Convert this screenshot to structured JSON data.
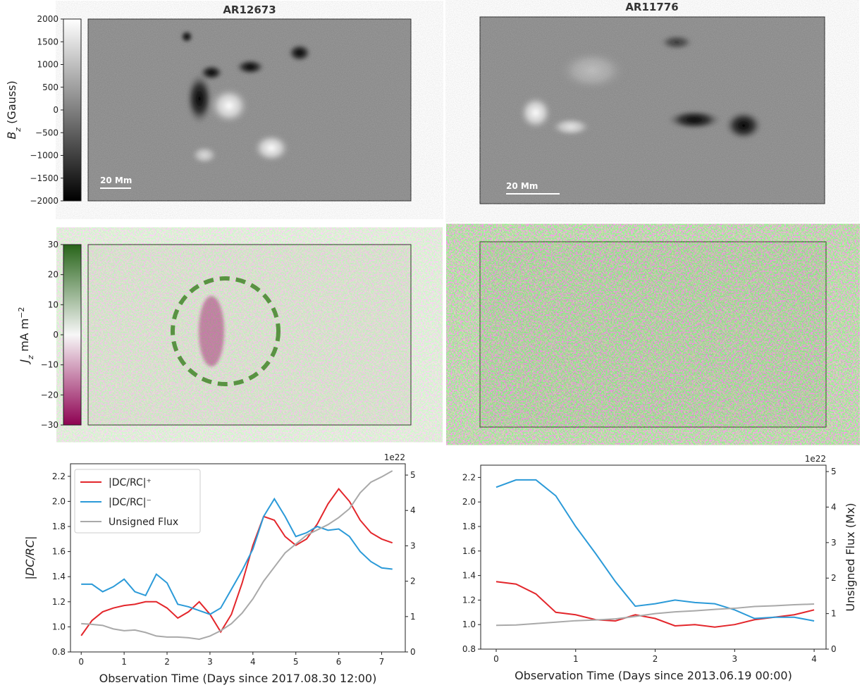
{
  "images": {
    "columns": [
      {
        "title": "AR12673",
        "scale_bar": "20 Mm"
      },
      {
        "title": "AR11776",
        "scale_bar": "20 Mm"
      }
    ],
    "colorbars": [
      {
        "label": {
          "symbol": "B",
          "sub": "z",
          "text": " (Gauss)"
        },
        "lim": [
          -2000,
          2000
        ],
        "colors": [
          "#000000",
          "#ffffff"
        ],
        "ticks": [
          2000,
          1500,
          1000,
          500,
          0,
          {
            "value": -500,
            "label": "−500"
          },
          {
            "value": -1000,
            "label": "−1000"
          },
          {
            "value": -1500,
            "label": "−1500"
          },
          {
            "value": -2000,
            "label": "−2000"
          }
        ]
      },
      {
        "label": {
          "symbol": "J",
          "sub": "z",
          "text": " mA m",
          "sup": "−2"
        },
        "lim": [
          -30,
          30
        ],
        "colors": [
          "#8e0152",
          "#f7f7f7",
          "#276419"
        ],
        "ticks": [
          30,
          20,
          10,
          0,
          {
            "value": -10,
            "label": "−10"
          },
          {
            "value": -20,
            "label": "−20"
          },
          {
            "value": -30,
            "label": "−30"
          }
        ]
      }
    ]
  },
  "chart_data": [
    {
      "type": "line",
      "xlabel": "Observation Time (Days since 2017.08.30 12:00)",
      "ylabel": "|DC/RC|",
      "y2_offset_label": "1e22",
      "legend": "upper left",
      "xlim": [
        -0.25,
        7.55
      ],
      "ylim": [
        0.8,
        2.3
      ],
      "y2lim": [
        0,
        5.32
      ],
      "xticks": [
        0,
        1,
        2,
        3,
        4,
        5,
        6,
        7
      ],
      "yticks": [
        0.8,
        {
          "value": 1,
          "label": "1.0"
        },
        1.2,
        1.4,
        1.6,
        1.8,
        {
          "value": 2,
          "label": "2.0"
        },
        2.2
      ],
      "y2ticks": [
        0,
        1,
        2,
        3,
        4,
        5
      ],
      "x": [
        0,
        0.25,
        0.5,
        0.75,
        1,
        1.25,
        1.5,
        1.75,
        2,
        2.25,
        2.5,
        2.75,
        3,
        3.25,
        3.5,
        3.75,
        4,
        4.25,
        4.5,
        4.75,
        5,
        5.25,
        5.5,
        5.75,
        6,
        6.25,
        6.5,
        6.75,
        7,
        7.25
      ],
      "series": [
        {
          "name": "|DC/RC|⁺",
          "color": "#e3262b",
          "axis": "y",
          "values": [
            0.93,
            1.05,
            1.12,
            1.15,
            1.17,
            1.18,
            1.2,
            1.2,
            1.15,
            1.07,
            1.12,
            1.2,
            1.1,
            0.96,
            1.1,
            1.35,
            1.65,
            1.88,
            1.85,
            1.72,
            1.65,
            1.7,
            1.82,
            1.98,
            2.1,
            2.0,
            1.85,
            1.75,
            1.7,
            1.67
          ]
        },
        {
          "name": "|DC/RC|⁻",
          "color": "#2b9ad8",
          "axis": "y",
          "values": [
            1.34,
            1.34,
            1.28,
            1.32,
            1.38,
            1.28,
            1.25,
            1.42,
            1.35,
            1.18,
            1.16,
            1.13,
            1.1,
            1.15,
            1.3,
            1.45,
            1.62,
            1.88,
            2.02,
            1.88,
            1.72,
            1.75,
            1.8,
            1.77,
            1.78,
            1.72,
            1.6,
            1.52,
            1.47,
            1.46
          ]
        },
        {
          "name": "Unsigned Flux",
          "color": "#a9a9a9",
          "axis": "y2",
          "values": [
            0.8,
            0.78,
            0.75,
            0.65,
            0.6,
            0.62,
            0.55,
            0.45,
            0.42,
            0.42,
            0.4,
            0.36,
            0.45,
            0.6,
            0.8,
            1.1,
            1.5,
            2.0,
            2.4,
            2.8,
            3.05,
            3.3,
            3.45,
            3.6,
            3.8,
            4.05,
            4.5,
            4.8,
            4.95,
            5.12
          ]
        }
      ]
    },
    {
      "type": "line",
      "xlabel": "Observation Time (Days since 2013.06.19 00:00)",
      "y2label": "Unsigned Flux (Mx)",
      "y2_offset_label": "1e22",
      "xlim": [
        -0.195,
        4.15
      ],
      "ylim": [
        0.8,
        2.3
      ],
      "y2lim": [
        0,
        5.18
      ],
      "xticks": [
        0,
        1,
        2,
        3,
        4
      ],
      "yticks": [
        0.8,
        {
          "value": 1,
          "label": "1.0"
        },
        1.2,
        1.4,
        1.6,
        1.8,
        {
          "value": 2,
          "label": "2.0"
        },
        2.2
      ],
      "y2ticks": [
        0,
        1,
        2,
        3,
        4,
        5
      ],
      "x": [
        0,
        0.25,
        0.5,
        0.75,
        1,
        1.25,
        1.5,
        1.75,
        2,
        2.25,
        2.5,
        2.75,
        3,
        3.25,
        3.5,
        3.75,
        4
      ],
      "series": [
        {
          "color": "#e3262b",
          "axis": "y",
          "values": [
            1.35,
            1.33,
            1.25,
            1.1,
            1.08,
            1.04,
            1.03,
            1.08,
            1.05,
            0.99,
            1.0,
            0.98,
            1.0,
            1.04,
            1.06,
            1.08,
            1.12
          ]
        },
        {
          "color": "#2b9ad8",
          "axis": "y",
          "values": [
            2.12,
            2.18,
            2.18,
            2.05,
            1.8,
            1.58,
            1.35,
            1.15,
            1.17,
            1.2,
            1.18,
            1.17,
            1.12,
            1.05,
            1.06,
            1.06,
            1.03
          ]
        },
        {
          "color": "#a9a9a9",
          "axis": "y2",
          "values": [
            0.67,
            0.68,
            0.72,
            0.76,
            0.8,
            0.82,
            0.85,
            0.92,
            1.0,
            1.05,
            1.08,
            1.12,
            1.15,
            1.2,
            1.22,
            1.25,
            1.27
          ]
        }
      ]
    }
  ]
}
